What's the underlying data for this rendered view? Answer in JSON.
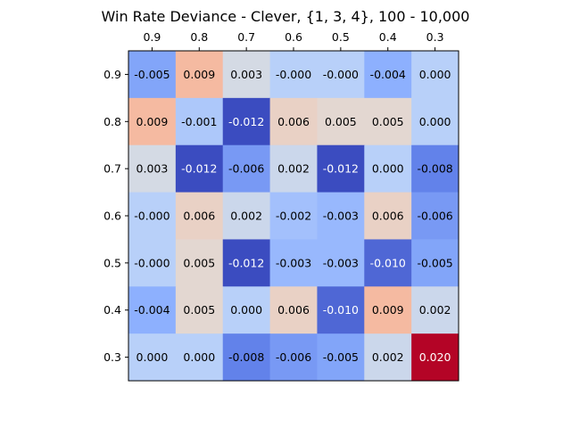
{
  "chart_data": {
    "type": "heatmap",
    "title": "Win Rate Deviance - Clever, {1, 3, 4}, 100 - 10,000",
    "xlabel": "",
    "ylabel": "",
    "x_tick_labels": [
      "0.9",
      "0.8",
      "0.7",
      "0.6",
      "0.5",
      "0.4",
      "0.3"
    ],
    "y_tick_labels": [
      "0.9",
      "0.8",
      "0.7",
      "0.6",
      "0.5",
      "0.4",
      "0.3"
    ],
    "x_axis_position": "top",
    "colormap": "coolwarm",
    "color_range": [
      -0.012,
      0.02
    ],
    "values": [
      [
        -0.005,
        0.009,
        0.003,
        -0.0,
        -0.0,
        -0.004,
        0.0
      ],
      [
        0.009,
        -0.001,
        -0.012,
        0.006,
        0.005,
        0.005,
        0.0
      ],
      [
        0.003,
        -0.012,
        -0.006,
        0.002,
        -0.012,
        0.0,
        -0.008
      ],
      [
        -0.0,
        0.006,
        0.002,
        -0.002,
        -0.003,
        0.006,
        -0.006
      ],
      [
        -0.0,
        0.005,
        -0.012,
        -0.003,
        -0.003,
        -0.01,
        -0.005
      ],
      [
        -0.004,
        0.005,
        0.0,
        0.006,
        -0.01,
        0.009,
        0.002
      ],
      [
        0.0,
        0.0,
        -0.008,
        -0.006,
        -0.005,
        0.002,
        0.02
      ]
    ],
    "labels": [
      [
        "-0.005",
        "0.009",
        "0.003",
        "-0.000",
        "-0.000",
        "-0.004",
        "0.000"
      ],
      [
        "0.009",
        "-0.001",
        "-0.012",
        "0.006",
        "0.005",
        "0.005",
        "0.000"
      ],
      [
        "0.003",
        "-0.012",
        "-0.006",
        "0.002",
        "-0.012",
        "0.000",
        "-0.008"
      ],
      [
        "-0.000",
        "0.006",
        "0.002",
        "-0.002",
        "-0.003",
        "0.006",
        "-0.006"
      ],
      [
        "-0.000",
        "0.005",
        "-0.012",
        "-0.003",
        "-0.003",
        "-0.010",
        "-0.005"
      ],
      [
        "-0.004",
        "0.005",
        "0.000",
        "0.006",
        "-0.010",
        "0.009",
        "0.002"
      ],
      [
        "0.000",
        "0.000",
        "-0.008",
        "-0.006",
        "-0.005",
        "0.002",
        "0.020"
      ]
    ],
    "grid": false,
    "legend": "none"
  }
}
